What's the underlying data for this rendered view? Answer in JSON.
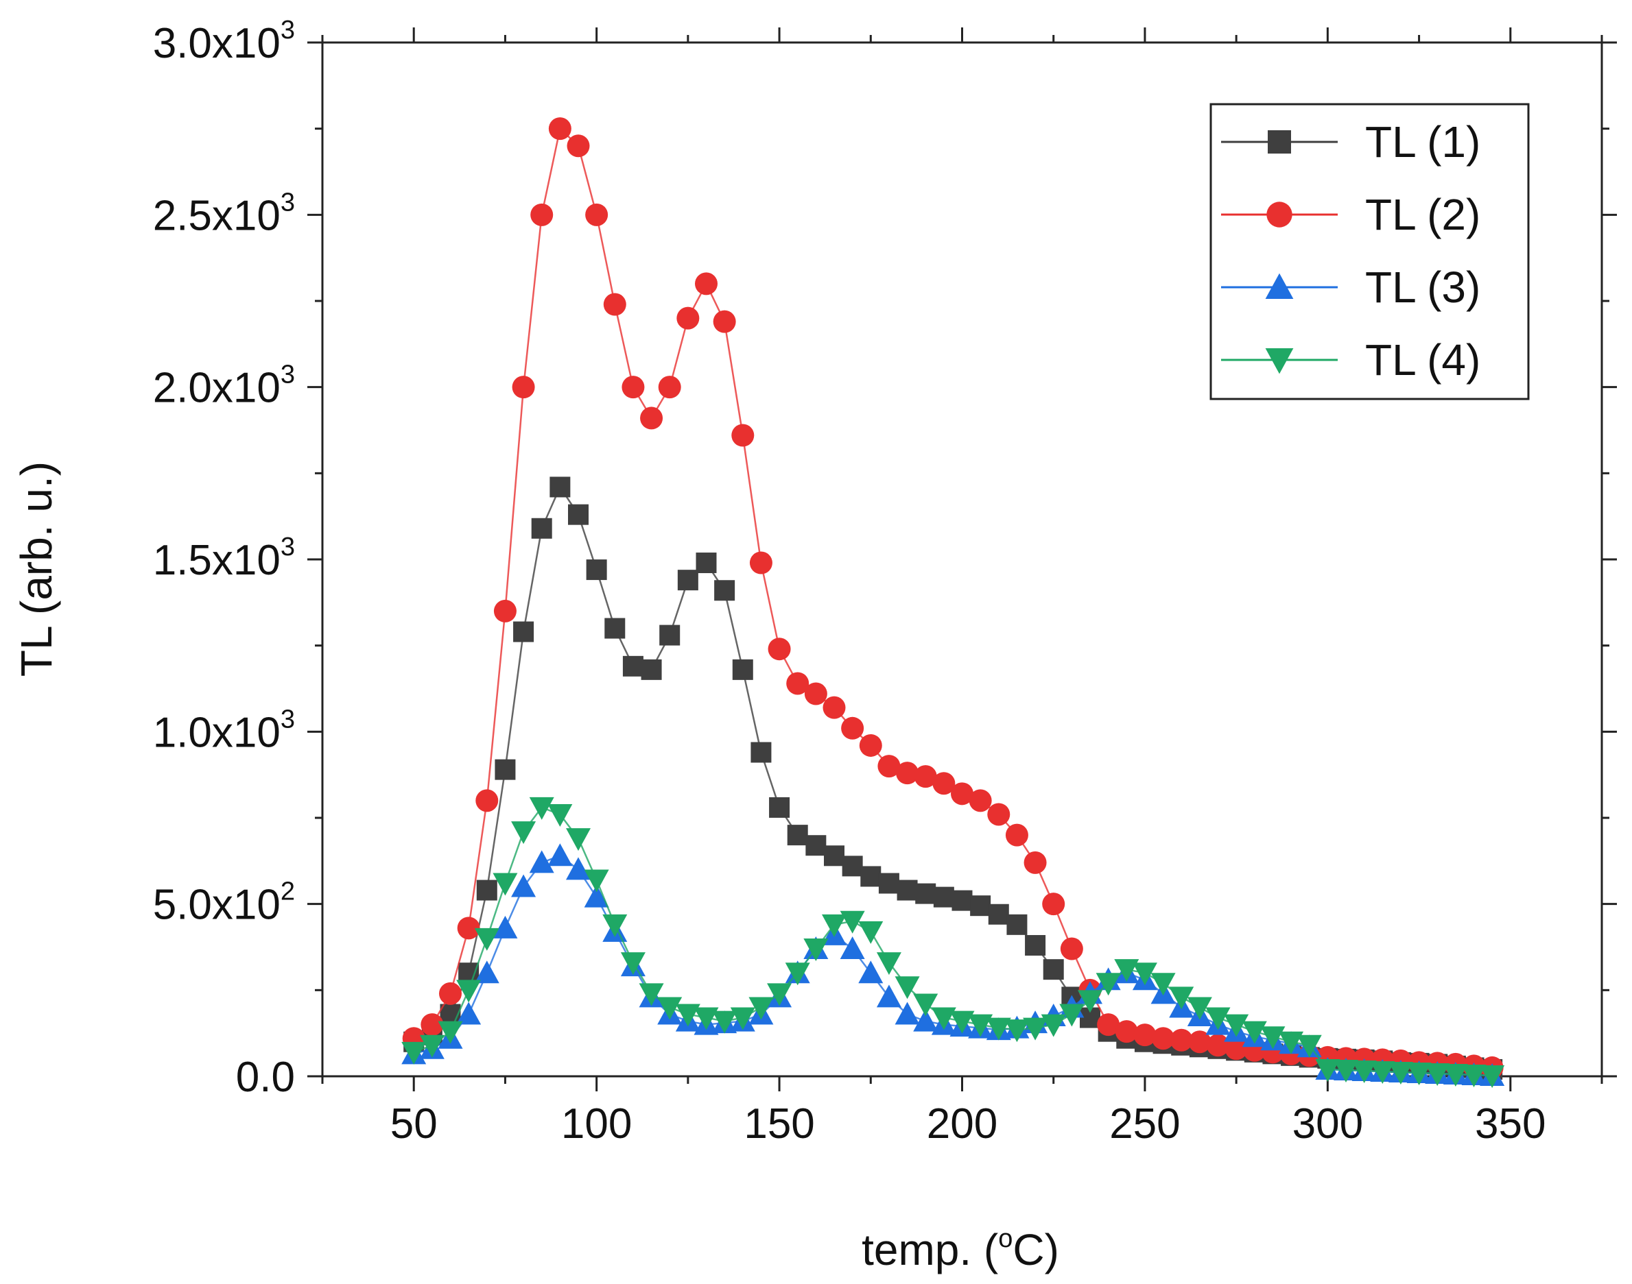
{
  "chart_data": {
    "type": "line",
    "title": "",
    "xlabel": "temp. (",
    "xlabel_superscript": "o",
    "xlabel_suffix": "C)",
    "ylabel": "TL (arb. u.)",
    "xlim": [
      25,
      375
    ],
    "ylim": [
      0,
      3000
    ],
    "xticks": [
      50,
      100,
      150,
      200,
      250,
      300,
      350
    ],
    "yticks": [
      {
        "value": 0,
        "mantissa": "0.0",
        "exp": ""
      },
      {
        "value": 500,
        "mantissa": "5.0x10",
        "exp": "2"
      },
      {
        "value": 1000,
        "mantissa": "1.0x10",
        "exp": "3"
      },
      {
        "value": 1500,
        "mantissa": "1.5x10",
        "exp": "3"
      },
      {
        "value": 2000,
        "mantissa": "2.0x10",
        "exp": "3"
      },
      {
        "value": 2500,
        "mantissa": "2.5x10",
        "exp": "3"
      },
      {
        "value": 3000,
        "mantissa": "3.0x10",
        "exp": "3"
      }
    ],
    "legend_position": "top-right",
    "series": [
      {
        "name": "TL (1)",
        "color": "#3f3f3f",
        "marker": "square",
        "x": [
          50,
          55,
          60,
          65,
          70,
          75,
          80,
          85,
          90,
          95,
          100,
          105,
          110,
          115,
          120,
          125,
          130,
          135,
          140,
          145,
          150,
          155,
          160,
          165,
          170,
          175,
          180,
          185,
          190,
          195,
          200,
          205,
          210,
          215,
          220,
          225,
          230,
          235,
          240,
          245,
          250,
          255,
          260,
          265,
          270,
          275,
          280,
          285,
          290,
          295,
          300,
          305,
          310,
          315,
          320,
          325,
          330,
          335,
          340,
          345
        ],
        "y": [
          100,
          120,
          180,
          300,
          540,
          890,
          1290,
          1590,
          1710,
          1630,
          1470,
          1300,
          1190,
          1180,
          1280,
          1440,
          1490,
          1410,
          1180,
          940,
          780,
          700,
          670,
          640,
          610,
          580,
          560,
          540,
          530,
          520,
          510,
          495,
          470,
          440,
          380,
          310,
          230,
          170,
          130,
          110,
          100,
          95,
          90,
          85,
          80,
          75,
          70,
          65,
          60,
          55,
          52,
          50,
          48,
          45,
          40,
          38,
          35,
          30,
          25,
          20
        ]
      },
      {
        "name": "TL (2)",
        "color": "#e8302f",
        "marker": "circle",
        "x": [
          50,
          55,
          60,
          65,
          70,
          75,
          80,
          85,
          90,
          95,
          100,
          105,
          110,
          115,
          120,
          125,
          130,
          135,
          140,
          145,
          150,
          155,
          160,
          165,
          170,
          175,
          180,
          185,
          190,
          195,
          200,
          205,
          210,
          215,
          220,
          225,
          230,
          235,
          240,
          245,
          250,
          255,
          260,
          265,
          270,
          275,
          280,
          285,
          290,
          295,
          300,
          305,
          310,
          315,
          320,
          325,
          330,
          335,
          340,
          345
        ],
        "y": [
          110,
          150,
          240,
          430,
          800,
          1350,
          2000,
          2500,
          2750,
          2700,
          2500,
          2240,
          2000,
          1910,
          2000,
          2200,
          2300,
          2190,
          1860,
          1490,
          1240,
          1140,
          1110,
          1070,
          1010,
          960,
          900,
          880,
          870,
          850,
          820,
          800,
          760,
          700,
          620,
          500,
          370,
          250,
          150,
          130,
          120,
          110,
          105,
          100,
          90,
          80,
          75,
          70,
          65,
          60,
          55,
          52,
          50,
          48,
          45,
          40,
          38,
          35,
          30,
          25
        ]
      },
      {
        "name": "TL (3)",
        "color": "#1f6fe0",
        "marker": "triangle-up",
        "x": [
          50,
          55,
          60,
          65,
          70,
          75,
          80,
          85,
          90,
          95,
          100,
          105,
          110,
          115,
          120,
          125,
          130,
          135,
          140,
          145,
          150,
          155,
          160,
          165,
          170,
          175,
          180,
          185,
          190,
          195,
          200,
          205,
          210,
          215,
          220,
          225,
          230,
          235,
          240,
          245,
          250,
          255,
          260,
          265,
          270,
          275,
          280,
          285,
          290,
          295,
          300,
          305,
          310,
          315,
          320,
          325,
          330,
          335,
          340,
          345
        ],
        "y": [
          65,
          80,
          110,
          180,
          300,
          430,
          550,
          620,
          640,
          600,
          520,
          420,
          320,
          230,
          180,
          160,
          150,
          155,
          160,
          180,
          230,
          300,
          370,
          410,
          370,
          300,
          230,
          180,
          160,
          150,
          145,
          140,
          135,
          140,
          155,
          175,
          200,
          240,
          280,
          300,
          280,
          240,
          200,
          175,
          150,
          130,
          115,
          105,
          95,
          85,
          20,
          18,
          16,
          14,
          12,
          10,
          8,
          6,
          4,
          2
        ]
      },
      {
        "name": "TL (4)",
        "color": "#1fa865",
        "marker": "triangle-down",
        "x": [
          50,
          55,
          60,
          65,
          70,
          75,
          80,
          85,
          90,
          95,
          100,
          105,
          110,
          115,
          120,
          125,
          130,
          135,
          140,
          145,
          150,
          155,
          160,
          165,
          170,
          175,
          180,
          185,
          190,
          195,
          200,
          205,
          210,
          215,
          220,
          225,
          230,
          235,
          240,
          245,
          250,
          255,
          260,
          265,
          270,
          275,
          280,
          285,
          290,
          295,
          300,
          305,
          310,
          315,
          320,
          325,
          330,
          335,
          340,
          345
        ],
        "y": [
          70,
          90,
          130,
          250,
          400,
          560,
          710,
          780,
          760,
          690,
          570,
          440,
          330,
          240,
          200,
          180,
          170,
          160,
          170,
          200,
          240,
          300,
          370,
          440,
          450,
          420,
          330,
          260,
          210,
          170,
          160,
          150,
          140,
          135,
          140,
          150,
          180,
          220,
          270,
          310,
          300,
          270,
          230,
          200,
          170,
          150,
          130,
          115,
          100,
          90,
          20,
          18,
          16,
          14,
          12,
          10,
          8,
          6,
          4,
          2
        ]
      }
    ]
  }
}
